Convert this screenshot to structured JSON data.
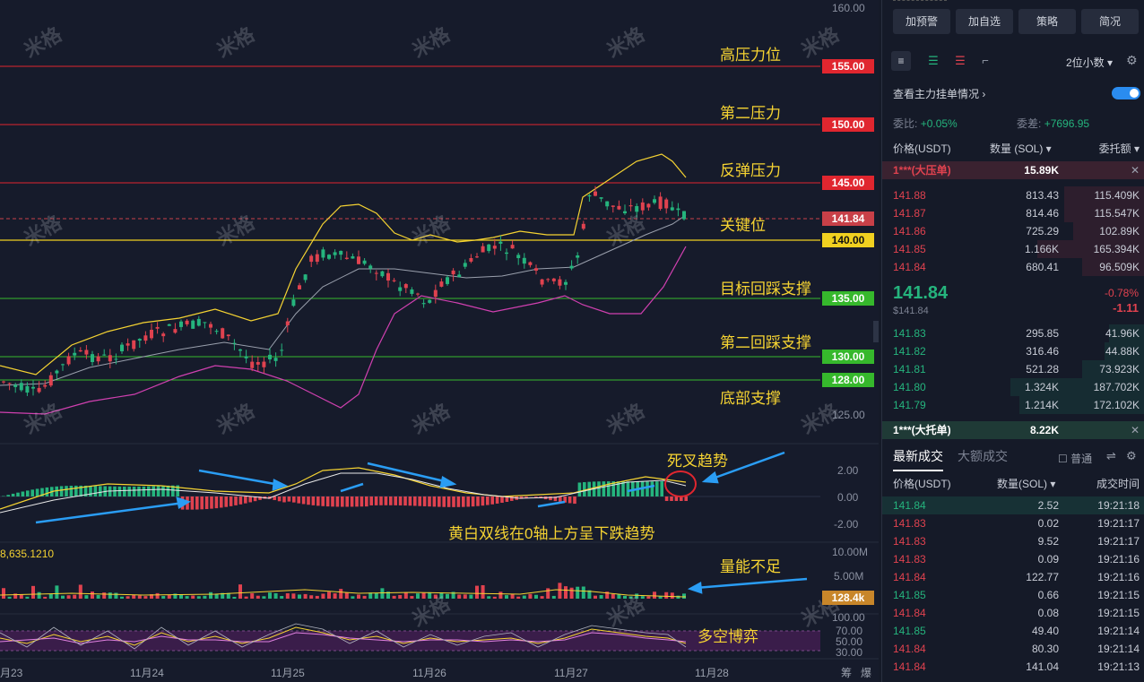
{
  "chart": {
    "right_axis_ticks": [
      "160.00",
      "125.00",
      "2.00",
      "0.00",
      "-2.00",
      "10.00M",
      "5.00M",
      "100.00",
      "70.00",
      "50.00",
      "30.00"
    ],
    "level_boxes": [
      {
        "label": "155.00",
        "color": "#e0262f"
      },
      {
        "label": "150.00",
        "color": "#e0262f"
      },
      {
        "label": "145.00",
        "color": "#e0262f"
      },
      {
        "label": "141.84",
        "color": "#c84048"
      },
      {
        "label": "140.00",
        "color": "#f0d020"
      },
      {
        "label": "135.00",
        "color": "#36b82c"
      },
      {
        "label": "130.00",
        "color": "#36b82c"
      },
      {
        "label": "128.00",
        "color": "#36b82c"
      },
      {
        "label": "128.4k",
        "color": "#c8862a"
      }
    ],
    "annotations": [
      "高压力位",
      "第二压力",
      "反弹压力",
      "关键位",
      "目标回踩支撑",
      "第二回踩支撑",
      "底部支撑",
      "死叉趋势",
      "黄白双线在0轴上方呈下跌趋势",
      "量能不足",
      "多空博弈"
    ],
    "volume_value": "8,635.1210",
    "dates": [
      "月23",
      "11月24",
      "11月25",
      "11月26",
      "11月27",
      "11月28"
    ],
    "corner_labels": [
      "筹",
      "爆"
    ],
    "watermark": "米格",
    "colors": {
      "up": "#25b47d",
      "down": "#e0424f",
      "yellow": "#f5d332",
      "bg": "#161b2b"
    }
  },
  "panel": {
    "top_buttons": [
      "加预警",
      "加自选",
      "策略",
      "简况"
    ],
    "decimals": "2位小数",
    "view_orders": "查看主力挂单情况",
    "ratio_label": "委比:",
    "ratio_value": "+0.05%",
    "diff_label": "委差:",
    "diff_value": "+7696.95",
    "book_headers": [
      "价格(USDT)",
      "数量 (SOL)",
      "委托额"
    ],
    "big_ask_label": "1***(大压单)",
    "big_ask_value": "15.89K",
    "asks": [
      {
        "p": "141.88",
        "q": "813.43",
        "a": "115.409K"
      },
      {
        "p": "141.87",
        "q": "814.46",
        "a": "115.547K"
      },
      {
        "p": "141.86",
        "q": "725.29",
        "a": "102.89K"
      },
      {
        "p": "141.85",
        "q": "1.166K",
        "a": "165.394K"
      },
      {
        "p": "141.84",
        "q": "680.41",
        "a": "96.509K"
      }
    ],
    "last_price": "141.84",
    "last_price_usd": "$141.84",
    "change_pct": "-0.78%",
    "change_abs": "-1.11",
    "bids": [
      {
        "p": "141.83",
        "q": "295.85",
        "a": "41.96K"
      },
      {
        "p": "141.82",
        "q": "316.46",
        "a": "44.88K"
      },
      {
        "p": "141.81",
        "q": "521.28",
        "a": "73.923K"
      },
      {
        "p": "141.80",
        "q": "1.324K",
        "a": "187.702K"
      },
      {
        "p": "141.79",
        "q": "1.214K",
        "a": "172.102K"
      }
    ],
    "big_bid_label": "1***(大托单)",
    "big_bid_value": "8.22K",
    "trade_tabs": [
      "最新成交",
      "大额成交"
    ],
    "normal_label": "普通",
    "trade_headers": [
      "价格(USDT)",
      "数量(SOL)",
      "成交时间"
    ],
    "trades": [
      {
        "p": "141.84",
        "q": "2.52",
        "t": "19:21:18",
        "side": "up"
      },
      {
        "p": "141.83",
        "q": "0.02",
        "t": "19:21:17",
        "side": "down"
      },
      {
        "p": "141.83",
        "q": "9.52",
        "t": "19:21:17",
        "side": "down"
      },
      {
        "p": "141.83",
        "q": "0.09",
        "t": "19:21:16",
        "side": "down"
      },
      {
        "p": "141.84",
        "q": "122.77",
        "t": "19:21:16",
        "side": "down"
      },
      {
        "p": "141.85",
        "q": "0.66",
        "t": "19:21:15",
        "side": "up"
      },
      {
        "p": "141.84",
        "q": "0.08",
        "t": "19:21:15",
        "side": "down"
      },
      {
        "p": "141.85",
        "q": "49.40",
        "t": "19:21:14",
        "side": "up"
      },
      {
        "p": "141.84",
        "q": "80.30",
        "t": "19:21:14",
        "side": "down"
      },
      {
        "p": "141.84",
        "q": "141.04",
        "t": "19:21:13",
        "side": "down"
      }
    ]
  }
}
